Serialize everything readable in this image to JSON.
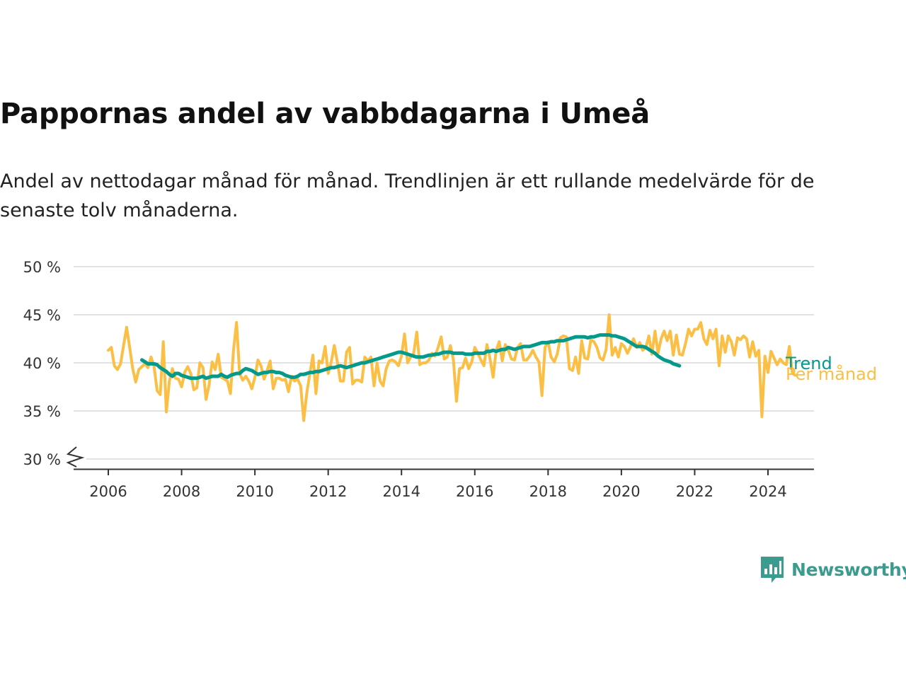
{
  "title": "Pappornas andel av vabbdagarna i Umeå",
  "subtitle": "Andel av nettodagar månad för månad. Trendlinjen är ett rullande medelvärde för de senaste tolv månaderna.",
  "brand": {
    "name": "Newsworthy",
    "color": "#3b9b8f"
  },
  "chart_data": {
    "type": "line",
    "title": "Pappornas andel av vabbdagarna i Umeå",
    "xlabel": "",
    "ylabel": "",
    "x_ticks": [
      "2006",
      "2008",
      "2010",
      "2012",
      "2014",
      "2016",
      "2018",
      "2020",
      "2022",
      "2024"
    ],
    "y_ticks": [
      "30 %",
      "35 %",
      "40 %",
      "45 %",
      "50 %"
    ],
    "ylim": [
      30,
      50
    ],
    "y_axis_break": true,
    "grid": true,
    "legend": "inline labels at line ends (right)",
    "series": [
      {
        "name": "Per månad",
        "color": "#fbbf45",
        "start": "2006-01",
        "values": [
          41.3,
          41.6,
          39.7,
          39.3,
          39.9,
          41.8,
          43.7,
          41.6,
          39.4,
          38.0,
          39.3,
          39.6,
          39.9,
          39.5,
          40.6,
          39.6,
          37.1,
          36.7,
          42.2,
          34.9,
          38.1,
          39.4,
          38.4,
          38.3,
          37.5,
          39.0,
          39.6,
          38.9,
          37.2,
          37.4,
          40.0,
          39.5,
          36.2,
          37.7,
          40.1,
          39.3,
          40.9,
          38.5,
          38.3,
          38.1,
          36.8,
          41.3,
          44.2,
          38.9,
          38.2,
          38.6,
          38.1,
          37.3,
          38.5,
          40.3,
          39.7,
          38.3,
          39.2,
          40.2,
          37.3,
          38.4,
          38.4,
          38.2,
          38.3,
          37.0,
          38.6,
          38.1,
          38.3,
          37.6,
          34.0,
          36.9,
          38.9,
          40.8,
          36.8,
          40.2,
          40.0,
          41.7,
          38.9,
          40.1,
          41.8,
          40.1,
          38.1,
          38.1,
          41.1,
          41.6,
          37.8,
          38.2,
          38.2,
          38.0,
          40.6,
          40.2,
          40.6,
          37.6,
          40.0,
          38.1,
          37.6,
          39.4,
          40.2,
          40.3,
          40.1,
          39.7,
          40.7,
          43.0,
          40.0,
          40.6,
          41.0,
          43.2,
          39.8,
          40.0,
          40.0,
          40.3,
          41.0,
          40.7,
          41.6,
          42.7,
          40.4,
          40.6,
          41.8,
          40.3,
          36.0,
          39.4,
          39.5,
          40.5,
          39.4,
          40.1,
          41.6,
          41.0,
          40.3,
          39.7,
          41.9,
          40.4,
          38.5,
          41.3,
          42.2,
          40.2,
          41.9,
          41.3,
          40.4,
          40.3,
          41.6,
          42.0,
          40.3,
          40.3,
          40.7,
          41.3,
          40.6,
          40.1,
          36.6,
          41.6,
          42.2,
          40.6,
          40.1,
          40.9,
          42.6,
          42.8,
          42.7,
          39.4,
          39.2,
          40.6,
          38.9,
          42.3,
          40.5,
          40.4,
          42.4,
          42.2,
          41.6,
          40.5,
          40.3,
          41.4,
          45.0,
          40.8,
          41.6,
          40.6,
          42.0,
          41.7,
          41.0,
          41.7,
          42.5,
          41.6,
          42.1,
          41.3,
          41.6,
          42.8,
          40.9,
          43.3,
          41.0,
          42.5,
          43.3,
          42.3,
          43.3,
          40.8,
          42.9,
          40.9,
          40.8,
          42.0,
          43.5,
          42.8,
          43.5,
          43.5,
          44.2,
          42.5,
          41.9,
          43.4,
          42.5,
          43.5,
          39.7,
          42.8,
          41.1,
          42.8,
          42.2,
          40.8,
          42.6,
          42.4,
          42.8,
          42.5,
          40.6,
          42.2,
          40.7,
          41.3,
          34.4,
          40.7,
          39.0,
          41.2,
          40.5,
          39.8,
          40.4,
          40.0,
          39.8,
          41.7,
          38.9,
          38.7
        ]
      },
      {
        "name": "Trend",
        "color": "#05998b",
        "start": "2006-12",
        "values": [
          40.3,
          40.1,
          39.9,
          39.9,
          39.9,
          39.8,
          39.5,
          39.3,
          39.1,
          38.8,
          38.6,
          38.9,
          38.9,
          38.7,
          38.6,
          38.5,
          38.4,
          38.4,
          38.4,
          38.5,
          38.6,
          38.4,
          38.5,
          38.6,
          38.6,
          38.6,
          38.8,
          38.6,
          38.5,
          38.7,
          38.8,
          38.9,
          38.9,
          39.2,
          39.4,
          39.3,
          39.2,
          39.0,
          38.8,
          38.9,
          39.0,
          39.0,
          39.1,
          39.1,
          39.0,
          39.0,
          38.9,
          38.7,
          38.6,
          38.5,
          38.5,
          38.6,
          38.8,
          38.8,
          38.9,
          39.0,
          39.0,
          39.1,
          39.1,
          39.2,
          39.3,
          39.4,
          39.5,
          39.5,
          39.6,
          39.7,
          39.6,
          39.5,
          39.6,
          39.7,
          39.8,
          39.9,
          40.0,
          40.0,
          40.1,
          40.2,
          40.3,
          40.4,
          40.5,
          40.6,
          40.7,
          40.8,
          40.9,
          41.0,
          41.1,
          41.1,
          41.0,
          40.9,
          40.8,
          40.7,
          40.6,
          40.6,
          40.6,
          40.7,
          40.8,
          40.8,
          40.9,
          40.9,
          41.0,
          41.1,
          41.1,
          41.1,
          41.0,
          41.0,
          41.0,
          41.0,
          40.9,
          40.9,
          40.9,
          41.0,
          41.0,
          41.0,
          41.0,
          41.2,
          41.2,
          41.3,
          41.2,
          41.3,
          41.4,
          41.4,
          41.6,
          41.5,
          41.4,
          41.5,
          41.6,
          41.7,
          41.7,
          41.7,
          41.8,
          41.9,
          42.0,
          42.1,
          42.1,
          42.1,
          42.2,
          42.2,
          42.3,
          42.3,
          42.3,
          42.4,
          42.5,
          42.6,
          42.7,
          42.7,
          42.7,
          42.7,
          42.6,
          42.7,
          42.7,
          42.8,
          42.9,
          42.9,
          42.9,
          42.9,
          42.8,
          42.8,
          42.7,
          42.6,
          42.5,
          42.3,
          42.1,
          41.9,
          41.7,
          41.7,
          41.7,
          41.6,
          41.4,
          41.2,
          41.0,
          40.7,
          40.5,
          40.3,
          40.2,
          40.1,
          39.9,
          39.8,
          39.7
        ]
      }
    ]
  }
}
